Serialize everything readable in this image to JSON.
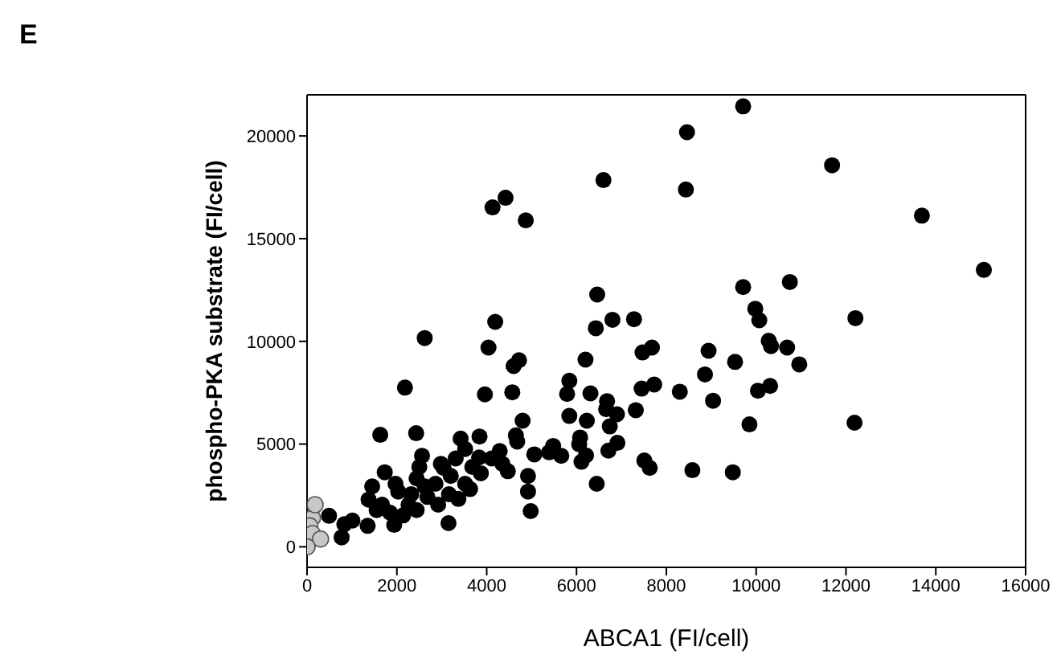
{
  "chart_data": {
    "type": "scatter",
    "title": "E",
    "xlabel": "ABCA1 (FI/cell)",
    "ylabel": "phospho-PKA substrate (FI/cell)",
    "xlim": [
      0,
      16000
    ],
    "ylim": [
      -1000,
      22000
    ],
    "xticks": [
      0,
      2000,
      4000,
      6000,
      8000,
      10000,
      12000,
      14000,
      16000
    ],
    "yticks": [
      0,
      5000,
      10000,
      15000,
      20000
    ],
    "marker": "circle",
    "series": [
      {
        "color": "#000000",
        "x": [
          9710,
          8460,
          11690,
          6600,
          8435,
          4420,
          4130,
          4870,
          13690,
          15070,
          6460,
          9710,
          10750,
          9980,
          10070,
          12210,
          6430,
          6800,
          7280,
          4190,
          2620,
          4040,
          4720,
          4600,
          6200,
          7470,
          7680,
          8940,
          10280,
          10330,
          10690,
          10960,
          9530,
          8860,
          5840,
          2180,
          3960,
          4570,
          5790,
          6310,
          7450,
          7730,
          8300,
          10040,
          10310,
          9040,
          6680,
          6660,
          6900,
          5840,
          6230,
          7320,
          4800,
          6740,
          9850,
          12190,
          1630,
          2430,
          3420,
          3840,
          4650,
          4680,
          6080,
          6060,
          6910,
          6710,
          5480,
          5390,
          5660,
          5060,
          6110,
          6210,
          7510,
          7630,
          8580,
          9480,
          6450,
          4920,
          4920,
          4980,
          3150,
          4470,
          4350,
          4290,
          4110,
          3830,
          3680,
          3520,
          3310,
          3200,
          3370,
          3040,
          2980,
          2560,
          2500,
          2440,
          2860,
          2680,
          2320,
          1970,
          2030,
          1730,
          1450,
          1370,
          1550,
          1850,
          1940,
          2140,
          2440,
          1350,
          1010,
          830,
          770,
          490,
          2920,
          3160,
          3520,
          3630,
          3870,
          1670,
          2260,
          2620
        ],
        "values": [
          21440,
          20180,
          18570,
          17850,
          17390,
          16990,
          16520,
          15890,
          16120,
          13480,
          12280,
          12640,
          12890,
          11590,
          11030,
          11130,
          10640,
          11050,
          11080,
          10950,
          10160,
          9700,
          9080,
          8800,
          9110,
          9460,
          9700,
          9540,
          10030,
          9770,
          9700,
          8880,
          9000,
          8390,
          8080,
          7750,
          7420,
          7520,
          7440,
          7470,
          7700,
          7900,
          7550,
          7600,
          7830,
          7110,
          7090,
          6700,
          6450,
          6370,
          6140,
          6650,
          6140,
          5860,
          5960,
          6040,
          5450,
          5530,
          5270,
          5370,
          5420,
          5120,
          5320,
          4990,
          5060,
          4680,
          4910,
          4600,
          4430,
          4500,
          4140,
          4450,
          4200,
          3840,
          3730,
          3630,
          3070,
          3450,
          2690,
          1740,
          1150,
          3680,
          4040,
          4660,
          4300,
          4350,
          3890,
          4760,
          4300,
          3450,
          2330,
          3840,
          4040,
          4430,
          3890,
          3330,
          3070,
          2430,
          2560,
          3070,
          2690,
          3630,
          2940,
          2300,
          1790,
          1660,
          1070,
          1530,
          1790,
          1020,
          1280,
          1100,
          460,
          1510,
          2050,
          2560,
          3070,
          2810,
          3580,
          2050,
          2050,
          2940
        ]
      },
      {
        "color": "#c8c8c8",
        "x": [
          120,
          60,
          120,
          300,
          0,
          180
        ],
        "values": [
          1410,
          1020,
          640,
          380,
          0,
          2050
        ]
      }
    ]
  }
}
